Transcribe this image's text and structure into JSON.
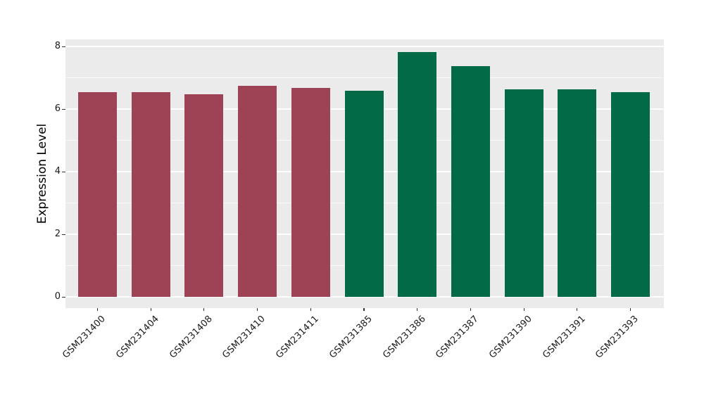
{
  "chart_data": {
    "type": "bar",
    "title": "",
    "xlabel": "",
    "ylabel": "Expression Level",
    "categories": [
      "GSM231400",
      "GSM231404",
      "GSM231408",
      "GSM231410",
      "GSM231411",
      "GSM231385",
      "GSM231386",
      "GSM231387",
      "GSM231390",
      "GSM231391",
      "GSM231393"
    ],
    "values": [
      6.53,
      6.53,
      6.48,
      6.74,
      6.68,
      6.58,
      7.82,
      7.36,
      6.64,
      6.64,
      6.55
    ],
    "bar_colors": [
      "#9E4355",
      "#9E4355",
      "#9E4355",
      "#9E4355",
      "#9E4355",
      "#036A47",
      "#036A47",
      "#036A47",
      "#036A47",
      "#036A47",
      "#036A47"
    ],
    "groups": [
      {
        "name": "maroon-group",
        "color": "#9E4355",
        "categories": [
          "GSM231400",
          "GSM231404",
          "GSM231408",
          "GSM231410",
          "GSM231411"
        ]
      },
      {
        "name": "green-group",
        "color": "#036A47",
        "categories": [
          "GSM231385",
          "GSM231386",
          "GSM231387",
          "GSM231390",
          "GSM231391",
          "GSM231393"
        ]
      }
    ],
    "ylim": [
      0,
      8
    ],
    "yticks": [
      0,
      2,
      4,
      6,
      8
    ],
    "yticks_minor": [
      1,
      3,
      5,
      7
    ],
    "grid": true,
    "legend": "none",
    "x_tick_rotation_deg": 45,
    "panel_bg": "#EBEBEB",
    "grid_major_color": "#FFFFFF",
    "grid_minor_color": "#FFFFFF",
    "tick_mark_color": "#333333",
    "text_color": "#1a1a1a"
  }
}
